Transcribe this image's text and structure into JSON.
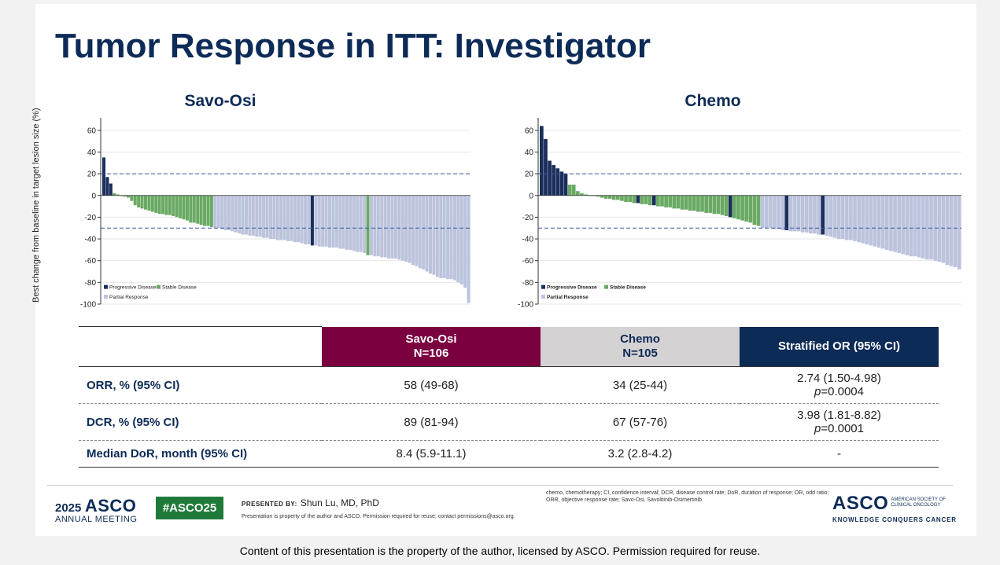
{
  "slide_title": "Tumor Response in ITT: Investigator",
  "y_axis_label": "Best change from baseline in target lesion size (%)",
  "colors": {
    "progressive": "#1a2e5c",
    "stable": "#6aaa64",
    "partial": "#bcc3dc",
    "navy": "#0d2b57",
    "maroon": "#7a0040"
  },
  "chart_data": [
    {
      "type": "bar",
      "title": "Savo-Osi",
      "ylim": [
        -100,
        70
      ],
      "yticks": [
        60,
        40,
        20,
        0,
        -20,
        -40,
        -60,
        -80,
        -100
      ],
      "reference_lines": [
        20,
        -30
      ],
      "legend": [
        "Progressive Disease",
        "Stable Disease",
        "Partial Response"
      ],
      "legend_placement": "bottom-left",
      "values": [
        35,
        17,
        11,
        2,
        1,
        0,
        -1,
        -2,
        -5,
        -9,
        -11,
        -12,
        -13,
        -14,
        -15,
        -16,
        -17,
        -17,
        -18,
        -18,
        -19,
        -20,
        -21,
        -22,
        -23,
        -25,
        -25,
        -26,
        -27,
        -28,
        -28,
        -29,
        -30,
        -30,
        -31,
        -32,
        -32,
        -33,
        -34,
        -35,
        -36,
        -36,
        -37,
        -37,
        -38,
        -38,
        -39,
        -39,
        -40,
        -40,
        -41,
        -41,
        -41,
        -42,
        -42,
        -43,
        -43,
        -44,
        -45,
        -45,
        -46,
        -46,
        -47,
        -47,
        -47,
        -48,
        -48,
        -48,
        -49,
        -49,
        -50,
        -50,
        -51,
        -52,
        -52,
        -53,
        -55,
        -55,
        -56,
        -56,
        -57,
        -57,
        -58,
        -58,
        -58,
        -59,
        -60,
        -61,
        -62,
        -64,
        -65,
        -67,
        -68,
        -70,
        -72,
        -73,
        -75,
        -76,
        -76,
        -77,
        -77,
        -78,
        -80,
        -82,
        -85,
        -99
      ],
      "response": [
        "PD",
        "PD",
        "PD",
        "SD",
        "SD",
        "SD",
        "SD",
        "SD",
        "SD",
        "SD",
        "SD",
        "SD",
        "SD",
        "SD",
        "SD",
        "SD",
        "SD",
        "SD",
        "SD",
        "SD",
        "SD",
        "SD",
        "SD",
        "SD",
        "SD",
        "SD",
        "SD",
        "SD",
        "SD",
        "SD",
        "SD",
        "SD",
        "PR",
        "PR",
        "PR",
        "PR",
        "PR",
        "PR",
        "PR",
        "PR",
        "PR",
        "PR",
        "PR",
        "PR",
        "PR",
        "PR",
        "PR",
        "PR",
        "PR",
        "PR",
        "PR",
        "PR",
        "PR",
        "PR",
        "PR",
        "PR",
        "PR",
        "PR",
        "PR",
        "PR",
        "PD",
        "PR",
        "PR",
        "PR",
        "PR",
        "PR",
        "PR",
        "PR",
        "PR",
        "PR",
        "PR",
        "PR",
        "PR",
        "PR",
        "PR",
        "PR",
        "SD",
        "PR",
        "PR",
        "PR",
        "PR",
        "PR",
        "PR",
        "PR",
        "PR",
        "PR",
        "PR",
        "PR",
        "PR",
        "PR",
        "PR",
        "PR",
        "PR",
        "PR",
        "PR",
        "PR",
        "PR",
        "PR",
        "PR",
        "PR",
        "PR",
        "PR",
        "PR",
        "PR",
        "PR",
        "PR"
      ]
    },
    {
      "type": "bar",
      "title": "Chemo",
      "ylim": [
        -100,
        70
      ],
      "yticks": [
        60,
        40,
        20,
        0,
        -20,
        -40,
        -60,
        -80,
        -100
      ],
      "reference_lines": [
        20,
        -30
      ],
      "legend": [
        "Progressive Disease",
        "Stable Disease",
        "Partial Response"
      ],
      "legend_placement": "bottom-left",
      "values": [
        64,
        52,
        32,
        28,
        25,
        22,
        20,
        10,
        10,
        4,
        2,
        1,
        0,
        0,
        -1,
        -2,
        -3,
        -3,
        -4,
        -4,
        -5,
        -6,
        -6,
        -7,
        -7,
        -8,
        -8,
        -9,
        -9,
        -10,
        -10,
        -11,
        -11,
        -12,
        -12,
        -13,
        -13,
        -14,
        -14,
        -15,
        -15,
        -16,
        -16,
        -17,
        -17,
        -18,
        -19,
        -20,
        -21,
        -22,
        -23,
        -24,
        -25,
        -27,
        -28,
        -30,
        -30,
        -30,
        -31,
        -31,
        -32,
        -32,
        -33,
        -33,
        -33,
        -34,
        -34,
        -35,
        -35,
        -36,
        -36,
        -37,
        -38,
        -39,
        -40,
        -40,
        -41,
        -41,
        -42,
        -43,
        -44,
        -45,
        -46,
        -47,
        -48,
        -49,
        -50,
        -51,
        -52,
        -53,
        -54,
        -55,
        -56,
        -56,
        -57,
        -58,
        -59,
        -59,
        -60,
        -61,
        -62,
        -64,
        -65,
        -66,
        -68
      ],
      "response": [
        "PD",
        "PD",
        "PD",
        "PD",
        "PD",
        "PD",
        "PD",
        "SD",
        "SD",
        "SD",
        "SD",
        "SD",
        "SD",
        "SD",
        "SD",
        "SD",
        "SD",
        "SD",
        "SD",
        "SD",
        "SD",
        "SD",
        "SD",
        "SD",
        "PD",
        "SD",
        "SD",
        "SD",
        "PD",
        "SD",
        "SD",
        "SD",
        "SD",
        "SD",
        "SD",
        "SD",
        "SD",
        "SD",
        "SD",
        "SD",
        "SD",
        "SD",
        "SD",
        "SD",
        "SD",
        "SD",
        "SD",
        "PD",
        "SD",
        "SD",
        "SD",
        "SD",
        "SD",
        "SD",
        "SD",
        "PR",
        "PR",
        "PR",
        "PR",
        "PR",
        "PR",
        "PD",
        "PR",
        "PR",
        "PR",
        "PR",
        "PR",
        "PR",
        "PR",
        "PR",
        "PD",
        "PR",
        "PR",
        "PR",
        "PR",
        "PR",
        "PR",
        "PR",
        "PR",
        "PR",
        "PR",
        "PR",
        "PR",
        "PR",
        "PR",
        "PR",
        "PR",
        "PR",
        "PR",
        "PR",
        "PR",
        "PR",
        "PR",
        "PR",
        "PR",
        "PR",
        "PR",
        "PR",
        "PR",
        "PR",
        "PR",
        "PR",
        "PR",
        "PR",
        "PR"
      ]
    }
  ],
  "table": {
    "headers": [
      {
        "line1": "Savo-Osi",
        "line2": "N=106"
      },
      {
        "line1": "Chemo",
        "line2": "N=105"
      },
      {
        "line1": "Stratified OR (95% CI)"
      }
    ],
    "rows": [
      {
        "label": "ORR, % (95% CI)",
        "savo": "58 (49-68)",
        "chemo": "34 (25-44)",
        "or": "2.74 (1.50-4.98)",
        "p_sym": "p",
        "p_val": "=0.0004"
      },
      {
        "label": "DCR, % (95% CI)",
        "savo": "89 (81-94)",
        "chemo": "67 (57-76)",
        "or": "3.98 (1.81-8.82)",
        "p_sym": "p",
        "p_val": "=0.0001"
      },
      {
        "label": "Median DoR, month (95% CI)",
        "savo": "8.4 (5.9-11.1)",
        "chemo": "3.2 (2.8-4.2)",
        "or": "-"
      }
    ]
  },
  "footer": {
    "year": "2025",
    "asco": "ASCO",
    "annual_meeting": "ANNUAL MEETING",
    "hashtag": "#ASCO25",
    "presented_label": "PRESENTED BY:",
    "presenter": "Shun Lu, MD, PhD",
    "property_note": "Presentation is property of the author and ASCO. Permission required for reuse; contact permissions@asco.org.",
    "abbreviations": "chemo, chemotherapy; CI, confidence interval; DCR, disease control rate; DoR, duration of response; OR, odd ratio; ORR, objective response rate; Savo-Osi, Savolitinib-Osimertinib.",
    "asco_logo": "ASCO",
    "society_line1": "AMERICAN SOCIETY OF",
    "society_line2": "CLINICAL ONCOLOGY",
    "tagline": "KNOWLEDGE CONQUERS CANCER"
  },
  "bottom_note": "Content of this presentation is the property of the author, licensed by ASCO. Permission required for reuse."
}
